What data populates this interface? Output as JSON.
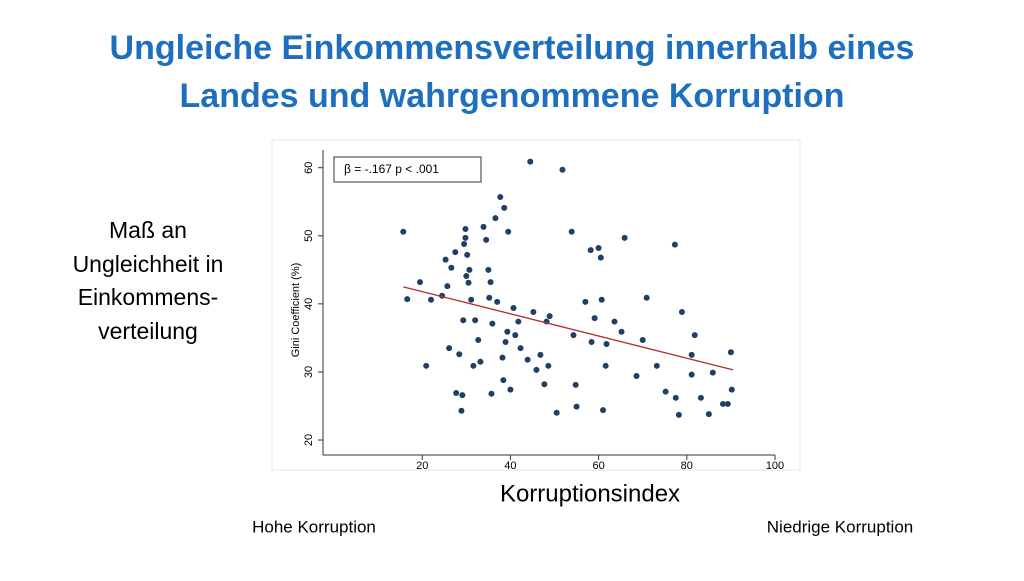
{
  "slide": {
    "title": [
      "Ungleiche Einkommensverteilung innerhalb eines",
      "Landes und wahrgenommene Korruption"
    ],
    "y_description": [
      "Maß an",
      "Ungleichheit in",
      "Einkommens-",
      "verteilung"
    ],
    "left_note": "Hohe Korruption",
    "right_note": "Niedrige Korruption"
  },
  "chart_data": {
    "type": "scatter",
    "x_label": "Korruptionsindex",
    "y_label": "Gini Coefficient (%)",
    "annotation": "β = -.167  p < .001",
    "xlim": [
      -2.5,
      100
    ],
    "ylim": [
      17.8,
      62.6
    ],
    "xticks": [
      20,
      40,
      60,
      80,
      100
    ],
    "yticks": [
      20,
      30,
      40,
      50,
      60
    ],
    "grid": false,
    "series": [
      {
        "color": "#1f3f66",
        "x": [
          15.7,
          16.6,
          19.5,
          20.9,
          22,
          24.5,
          25.3,
          25.7,
          26.1,
          26.6,
          27.5,
          27.7,
          28.4,
          28.9,
          29.1,
          29.3,
          29.5,
          29.8,
          29.8,
          30,
          30.2,
          30.5,
          30.7,
          31.1,
          31.6,
          32,
          32.7,
          33.2,
          33.9,
          34.5,
          35,
          35.2,
          35.5,
          35.7,
          35.9,
          36.6,
          37,
          37.7,
          38.2,
          38.4,
          38.6,
          38.9,
          39.3,
          39.5,
          40,
          40.7,
          41.1,
          41.8,
          42.3,
          43.9,
          44.5,
          45.2,
          45.9,
          46.8,
          47.7,
          48.2,
          48.9,
          48.6,
          50.5,
          51.8,
          53.9,
          54.3,
          54.8,
          55,
          57,
          58.2,
          58.4,
          59.1,
          60,
          60.5,
          60.7,
          61,
          61.6,
          61.8,
          63.6,
          65.2,
          65.9,
          68.6,
          70,
          70.9,
          73.2,
          75.2,
          77.3,
          77.5,
          78.2,
          78.9,
          81.1,
          81.1,
          81.8,
          83.2,
          85,
          85.9,
          88.2,
          89.3,
          90,
          90.2
        ],
        "values": [
          50.6,
          40.7,
          43.2,
          30.9,
          40.6,
          41.2,
          46.5,
          42.6,
          33.5,
          45.3,
          47.6,
          26.9,
          32.6,
          24.3,
          26.6,
          37.6,
          48.8,
          51,
          49.7,
          44.1,
          47.2,
          43.1,
          45,
          40.6,
          30.9,
          37.6,
          34.7,
          31.5,
          51.3,
          49.4,
          45,
          40.9,
          43.2,
          26.8,
          37.1,
          52.6,
          40.3,
          55.7,
          32.1,
          28.8,
          54.1,
          34.4,
          35.9,
          50.6,
          27.4,
          39.4,
          35.4,
          37.4,
          33.5,
          31.8,
          60.9,
          38.8,
          30.3,
          32.5,
          28.2,
          37.4,
          38.2,
          30.9,
          24,
          59.7,
          50.6,
          35.4,
          28.1,
          24.9,
          40.3,
          47.9,
          34.4,
          37.9,
          48.2,
          46.8,
          40.6,
          24.4,
          30.9,
          34.1,
          37.4,
          35.9,
          49.7,
          29.4,
          34.7,
          40.9,
          30.9,
          27.1,
          48.7,
          26.2,
          23.7,
          38.8,
          32.5,
          29.6,
          35.4,
          26.2,
          23.8,
          29.9,
          25.3,
          25.3,
          32.9,
          27.4
        ]
      },
      {
        "color": "#b03030",
        "x": [
          15.7,
          90.5
        ],
        "values": [
          42.5,
          30.3
        ]
      }
    ]
  }
}
